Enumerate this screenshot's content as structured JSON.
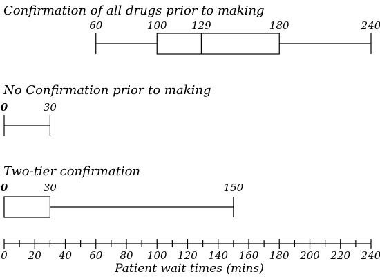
{
  "chart_data": {
    "type": "boxplot",
    "title": "",
    "xlabel": "Patient wait times (mins)",
    "xlim": [
      0,
      240
    ],
    "xticks": [
      "0",
      "20",
      "40",
      "60",
      "80",
      "100",
      "120",
      "140",
      "160",
      "180",
      "200",
      "220",
      "240"
    ],
    "grid": false,
    "series": [
      {
        "name": "Confirmation of all drugs prior to making",
        "min": 60,
        "q1": 100,
        "median": 129,
        "q3": 180,
        "max": 240,
        "labels": [
          "60",
          "100",
          "129",
          "180",
          "240"
        ]
      },
      {
        "name": "No Confirmation prior to making",
        "min": 0,
        "q1": null,
        "median": null,
        "q3": null,
        "max": 30,
        "labels": [
          "0",
          "30"
        ]
      },
      {
        "name": "Two-tier confirmation",
        "min": 0,
        "q1": 0,
        "median": null,
        "q3": 30,
        "max": 150,
        "labels": [
          "0",
          "30",
          "150"
        ]
      }
    ]
  }
}
